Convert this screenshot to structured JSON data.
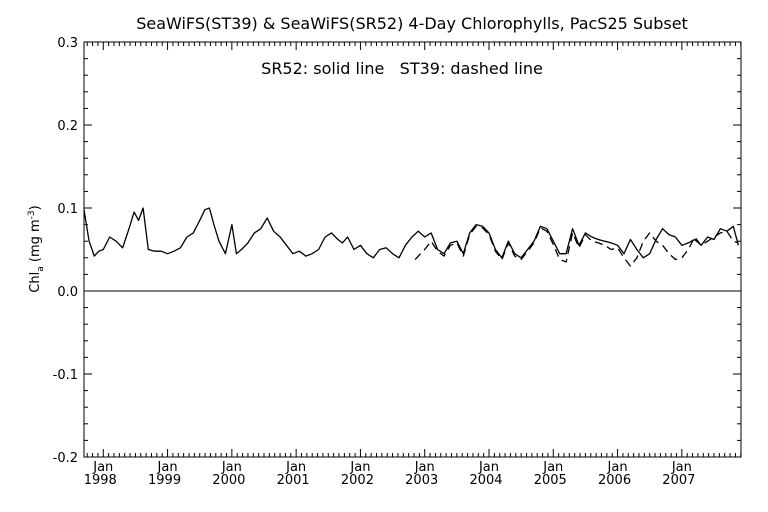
{
  "chart_data": {
    "type": "line",
    "title": "SeaWiFS(ST39) & SeaWiFS(SR52) 4-Day Chlorophylls, PacS25 Subset",
    "annotation": "SR52: solid line   ST39: dashed line",
    "ylabel": "Chl",
    "ylabel_subscript": "a",
    "ylabel_unit_open": " (mg m",
    "ylabel_unit_exp": "-3",
    "ylabel_unit_close": ")",
    "xlabel": "",
    "xlim": [
      1997.7,
      2007.92
    ],
    "ylim": [
      -0.2,
      0.3
    ],
    "y_ticks": [
      -0.2,
      -0.1,
      0.0,
      0.1,
      0.2,
      0.3
    ],
    "y_tick_labels": [
      "-0.2",
      "-0.1",
      "0.0",
      "0.1",
      "0.2",
      "0.3"
    ],
    "x_ticks": [
      1998,
      1999,
      2000,
      2001,
      2002,
      2003,
      2004,
      2005,
      2006,
      2007
    ],
    "x_tick_month": "Jan",
    "x_tick_years": [
      "1998",
      "1999",
      "2000",
      "2001",
      "2002",
      "2003",
      "2004",
      "2005",
      "2006",
      "2007"
    ],
    "zero_line": 0.0,
    "grid": false,
    "series": [
      {
        "name": "SR52",
        "style": "solid",
        "color": "#000000",
        "x": [
          1997.7,
          1997.78,
          1997.86,
          1997.93,
          1998.0,
          1998.1,
          1998.2,
          1998.3,
          1998.4,
          1998.48,
          1998.55,
          1998.62,
          1998.7,
          1998.8,
          1998.9,
          1999.0,
          1999.1,
          1999.2,
          1999.3,
          1999.4,
          1999.5,
          1999.58,
          1999.65,
          1999.72,
          1999.8,
          1999.9,
          2000.0,
          2000.07,
          2000.15,
          2000.25,
          2000.35,
          2000.45,
          2000.55,
          2000.65,
          2000.75,
          2000.85,
          2000.95,
          2001.05,
          2001.15,
          2001.25,
          2001.35,
          2001.45,
          2001.55,
          2001.65,
          2001.72,
          2001.8,
          2001.9,
          2002.0,
          2002.1,
          2002.2,
          2002.3,
          2002.4,
          2002.5,
          2002.6,
          2002.7,
          2002.8,
          2002.9,
          2003.0,
          2003.1,
          2003.2,
          2003.3,
          2003.4,
          2003.5,
          2003.6,
          2003.7,
          2003.8,
          2003.9,
          2004.0,
          2004.1,
          2004.2,
          2004.3,
          2004.4,
          2004.5,
          2004.6,
          2004.7,
          2004.8,
          2004.9,
          2005.0,
          2005.1,
          2005.2,
          2005.3,
          2005.4,
          2005.5,
          2005.6,
          2005.7,
          2005.8,
          2005.9,
          2006.0,
          2006.1,
          2006.2,
          2006.3,
          2006.4,
          2006.5,
          2006.6,
          2006.7,
          2006.8,
          2006.9,
          2007.0,
          2007.1,
          2007.2,
          2007.3,
          2007.4,
          2007.5,
          2007.6,
          2007.7,
          2007.8,
          2007.88
        ],
        "values": [
          0.098,
          0.06,
          0.042,
          0.048,
          0.05,
          0.065,
          0.06,
          0.052,
          0.075,
          0.095,
          0.085,
          0.1,
          0.05,
          0.048,
          0.048,
          0.045,
          0.048,
          0.052,
          0.065,
          0.07,
          0.085,
          0.098,
          0.1,
          0.08,
          0.06,
          0.045,
          0.08,
          0.045,
          0.05,
          0.058,
          0.07,
          0.075,
          0.088,
          0.072,
          0.065,
          0.055,
          0.045,
          0.048,
          0.042,
          0.045,
          0.05,
          0.065,
          0.07,
          0.062,
          0.058,
          0.065,
          0.05,
          0.055,
          0.045,
          0.04,
          0.05,
          0.052,
          0.045,
          0.04,
          0.055,
          0.065,
          0.072,
          0.065,
          0.07,
          0.05,
          0.045,
          0.058,
          0.06,
          0.045,
          0.07,
          0.08,
          0.078,
          0.07,
          0.05,
          0.04,
          0.06,
          0.045,
          0.04,
          0.05,
          0.06,
          0.078,
          0.075,
          0.06,
          0.045,
          0.045,
          0.075,
          0.055,
          0.07,
          0.065,
          0.062,
          0.06,
          0.058,
          0.055,
          0.045,
          0.062,
          0.05,
          0.04,
          0.045,
          0.062,
          0.075,
          0.068,
          0.065,
          0.055,
          0.058,
          0.062,
          0.055,
          0.065,
          0.062,
          0.075,
          0.072,
          0.078,
          0.055
        ],
        "x_label": "",
        "y_label": ""
      },
      {
        "name": "ST39",
        "style": "dashed",
        "color": "#000000",
        "x": [
          2002.85,
          2003.0,
          2003.1,
          2003.2,
          2003.3,
          2003.4,
          2003.5,
          2003.6,
          2003.7,
          2003.8,
          2003.9,
          2004.0,
          2004.1,
          2004.2,
          2004.3,
          2004.4,
          2004.5,
          2004.6,
          2004.7,
          2004.8,
          2004.9,
          2005.0,
          2005.1,
          2005.2,
          2005.3,
          2005.4,
          2005.5,
          2005.6,
          2005.7,
          2005.8,
          2005.9,
          2006.0,
          2006.1,
          2006.2,
          2006.3,
          2006.4,
          2006.5,
          2006.6,
          2006.7,
          2006.8,
          2006.9,
          2007.0,
          2007.1,
          2007.2,
          2007.3,
          2007.4,
          2007.5,
          2007.6,
          2007.7,
          2007.8,
          2007.88
        ],
        "values": [
          0.038,
          0.05,
          0.06,
          0.048,
          0.042,
          0.055,
          0.058,
          0.042,
          0.068,
          0.078,
          0.076,
          0.068,
          0.048,
          0.038,
          0.058,
          0.042,
          0.038,
          0.048,
          0.058,
          0.076,
          0.072,
          0.056,
          0.038,
          0.035,
          0.07,
          0.052,
          0.068,
          0.06,
          0.058,
          0.055,
          0.05,
          0.052,
          0.04,
          0.03,
          0.04,
          0.06,
          0.07,
          0.06,
          0.055,
          0.045,
          0.038,
          0.04,
          0.05,
          0.065,
          0.055,
          0.06,
          0.065,
          0.07,
          0.072,
          0.06,
          0.058
        ],
        "x_label": "",
        "y_label": ""
      }
    ]
  }
}
